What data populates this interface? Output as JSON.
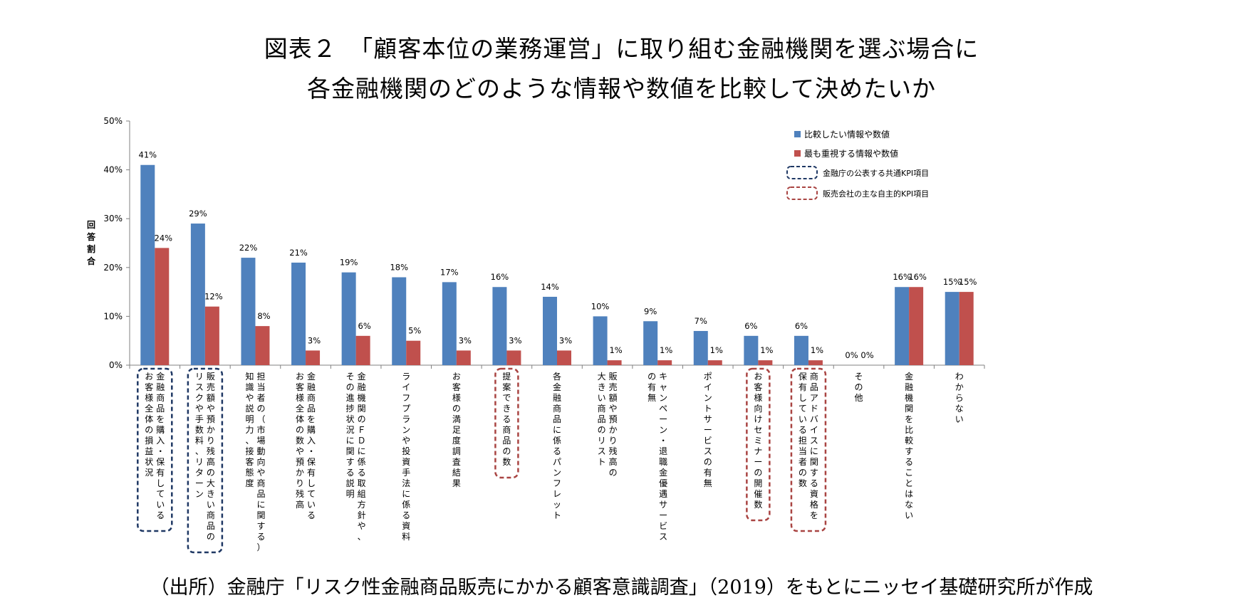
{
  "title_line1": "図表２　「顧客本位の業務運営」に取り組む金融機関を選ぶ場合に",
  "title_line2": "各金融機関のどのような情報や数値を比較して決めたいか",
  "source": "（出所）金融庁「リスク性金融商品販売にかかる顧客意識調査」（2019）をもとにニッセイ基礎研究所が作成",
  "legend": {
    "blue_fill": "比較したい情報や数値",
    "red_fill": "最も重視する情報や数値",
    "blue_box": "金融庁の公表する共通KPI項目",
    "red_box": "販売会社の主な自主的KPI項目"
  },
  "colors": {
    "blue": "#4F81BD",
    "red": "#C0504D",
    "blue_box": "#1F3864",
    "red_box": "#A94442",
    "axis": "#808080"
  },
  "chart_data": {
    "type": "bar",
    "ylabel": "回答割合",
    "ylim": [
      0,
      50
    ],
    "yticks": [
      "0%",
      "10%",
      "20%",
      "30%",
      "40%",
      "50%"
    ],
    "categories": [
      {
        "lines": [
          "金融商品を購入・保有している",
          "お客様全体の損益状況"
        ],
        "box": "blue"
      },
      {
        "lines": [
          "販売額や預かり残高の大きい商品の",
          "リスクや手数料、リターン"
        ],
        "box": "blue"
      },
      {
        "lines": [
          "担当者の（市場動向や商品に関する）",
          "知識や説明力、接客態度"
        ],
        "box": ""
      },
      {
        "lines": [
          "金融商品を購入・保有している",
          "お客様全体の数や預かり残高"
        ],
        "box": ""
      },
      {
        "lines": [
          "金融機関のＦＤに係る取組方針や、",
          "その進捗状況に関する説明"
        ],
        "box": ""
      },
      {
        "lines": [
          "ライフプランや投資手法に係る資料"
        ],
        "box": ""
      },
      {
        "lines": [
          "お客様の満足度調査結果"
        ],
        "box": ""
      },
      {
        "lines": [
          "提案できる商品の数"
        ],
        "box": "red"
      },
      {
        "lines": [
          "各金融商品に係るパンフレット"
        ],
        "box": ""
      },
      {
        "lines": [
          "販売額や預かり残高の",
          "大きい商品のリスト"
        ],
        "box": ""
      },
      {
        "lines": [
          "キャンペーン・退職金優遇サービス",
          "の有無"
        ],
        "box": ""
      },
      {
        "lines": [
          "ポイントサービスの有無"
        ],
        "box": ""
      },
      {
        "lines": [
          "お客様向けセミナーの開催数"
        ],
        "box": "red"
      },
      {
        "lines": [
          "商品アドバイスに関する資格を",
          "保有している担当者の数"
        ],
        "box": "red"
      },
      {
        "lines": [
          "その他"
        ],
        "box": ""
      },
      {
        "lines": [
          "金融機関を比較することはない"
        ],
        "box": ""
      },
      {
        "lines": [
          "わからない"
        ],
        "box": ""
      }
    ],
    "series": [
      {
        "name": "比較したい情報や数値",
        "values": [
          41,
          29,
          22,
          21,
          19,
          18,
          17,
          16,
          14,
          10,
          9,
          7,
          6,
          6,
          0,
          16,
          15
        ],
        "labels": [
          "41%",
          "29%",
          "22%",
          "21%",
          "19%",
          "18%",
          "17%",
          "16%",
          "14%",
          "10%",
          "9%",
          "7%",
          "6%",
          "6%",
          "0%",
          "16%",
          "15%"
        ]
      },
      {
        "name": "最も重視する情報や数値",
        "values": [
          24,
          12,
          8,
          3,
          6,
          5,
          3,
          3,
          3,
          1,
          1,
          1,
          1,
          1,
          0,
          16,
          15
        ],
        "labels": [
          "24%",
          "12%",
          "8%",
          "3%",
          "6%",
          "5%",
          "3%",
          "3%",
          "3%",
          "1%",
          "1%",
          "1%",
          "1%",
          "1%",
          "0%",
          "16%",
          "15%"
        ]
      }
    ]
  }
}
